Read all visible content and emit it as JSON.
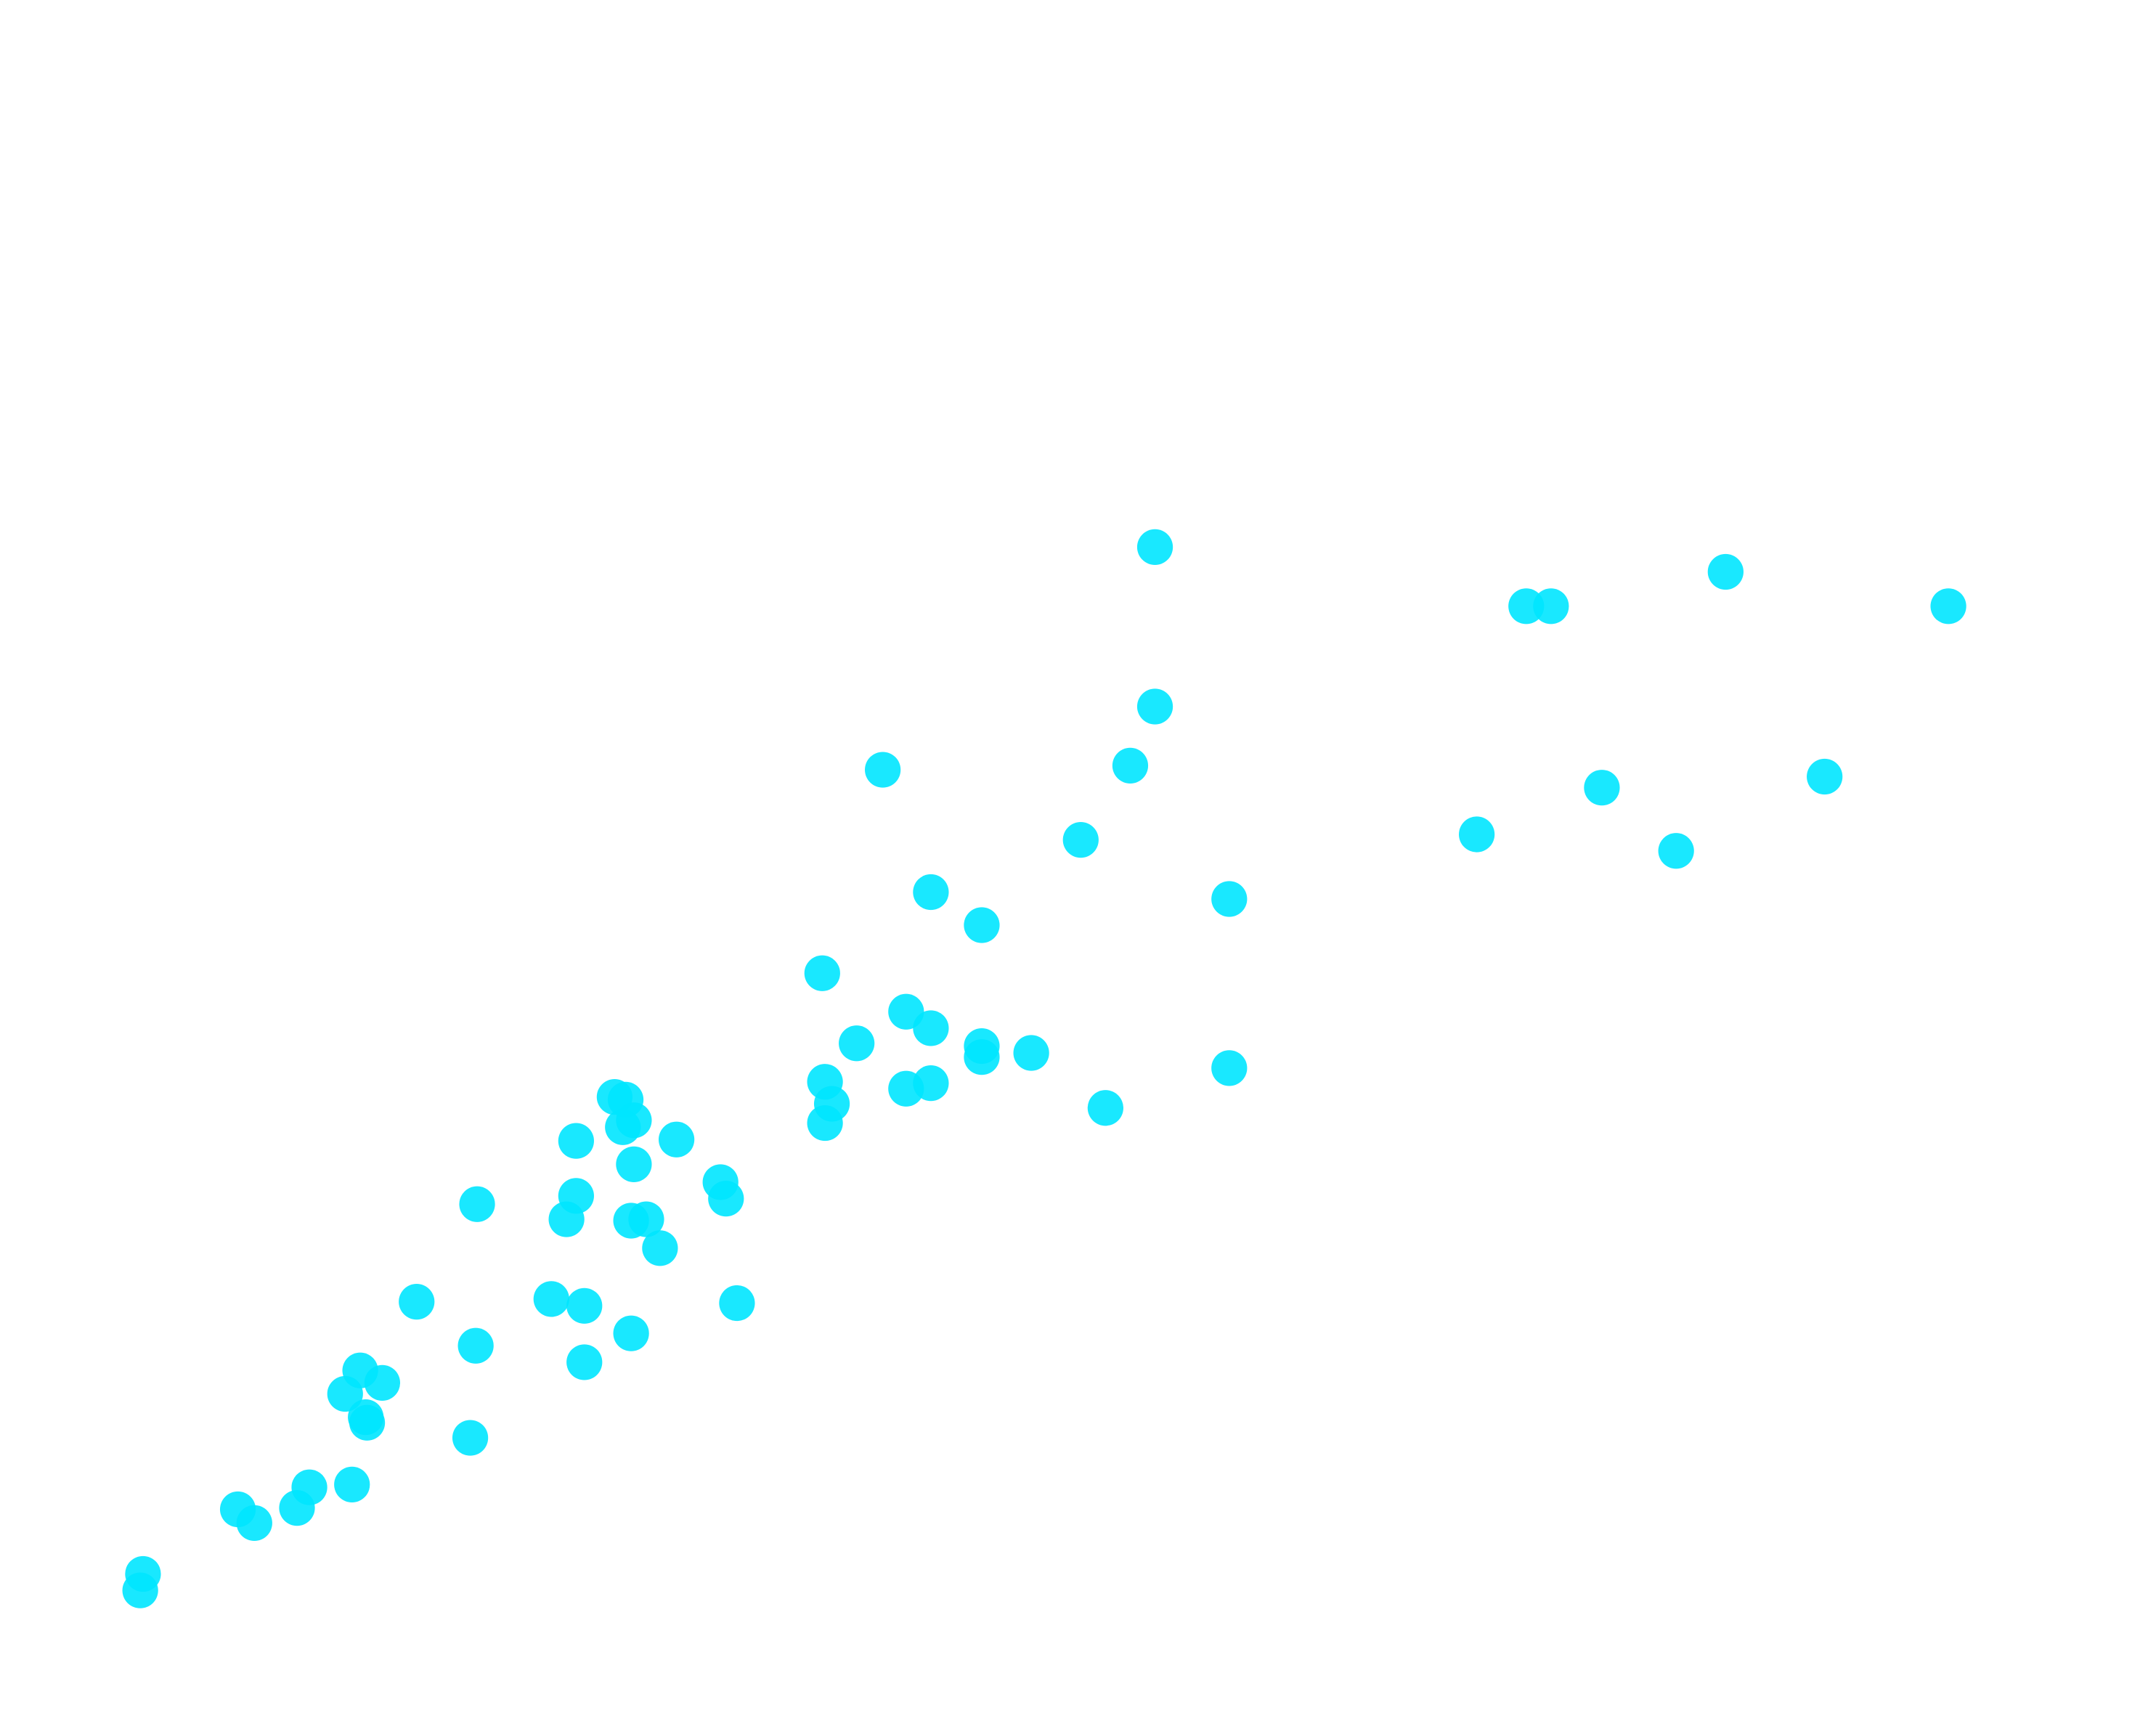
{
  "chart_data": {
    "type": "scatter",
    "title": "",
    "xlabel": "",
    "ylabel": "",
    "xlim": [
      -10,
      146.8
    ],
    "ylim": [
      -5.2,
      120
    ],
    "grid": false,
    "axes_visible": false,
    "legend": "none",
    "marker_color": "#00e5ff",
    "points": [
      [
        74,
        80.2
      ],
      [
        101,
        75.9
      ],
      [
        102.8,
        75.9
      ],
      [
        115.5,
        78.4
      ],
      [
        131.7,
        75.9
      ],
      [
        74,
        68.6
      ],
      [
        54.2,
        64
      ],
      [
        72.2,
        64.3
      ],
      [
        68.6,
        58.9
      ],
      [
        97.4,
        59.3
      ],
      [
        106.5,
        62.7
      ],
      [
        111.9,
        58.1
      ],
      [
        122.7,
        63.5
      ],
      [
        57.7,
        55.1
      ],
      [
        61.4,
        52.7
      ],
      [
        79.4,
        54.6
      ],
      [
        49.8,
        49.2
      ],
      [
        55.9,
        46.4
      ],
      [
        57.7,
        45.2
      ],
      [
        52.3,
        44.1
      ],
      [
        61.4,
        43.9
      ],
      [
        61.4,
        43.1
      ],
      [
        65,
        43.4
      ],
      [
        79.4,
        42.3
      ],
      [
        50,
        41.3
      ],
      [
        55.9,
        40.8
      ],
      [
        57.7,
        41.2
      ],
      [
        70.4,
        39.4
      ],
      [
        50.5,
        39.7
      ],
      [
        50,
        38.3
      ],
      [
        34.7,
        40.2
      ],
      [
        35.5,
        40
      ],
      [
        36.1,
        38.5
      ],
      [
        35.3,
        38
      ],
      [
        31.9,
        37
      ],
      [
        39.2,
        37.1
      ],
      [
        36.1,
        35.3
      ],
      [
        42.4,
        34
      ],
      [
        42.8,
        32.8
      ],
      [
        24.7,
        32.4
      ],
      [
        31.9,
        33
      ],
      [
        31.2,
        31.3
      ],
      [
        35.9,
        31.2
      ],
      [
        37,
        31.3
      ],
      [
        38,
        29.2
      ],
      [
        20.3,
        25.3
      ],
      [
        30.1,
        25.5
      ],
      [
        32.5,
        25
      ],
      [
        43.6,
        25.2
      ],
      [
        24.6,
        22.1
      ],
      [
        35.9,
        23
      ],
      [
        32.5,
        20.9
      ],
      [
        16.2,
        20.3
      ],
      [
        17.8,
        19.4
      ],
      [
        15.1,
        18.6
      ],
      [
        16.6,
        16.9
      ],
      [
        16.7,
        16.5
      ],
      [
        24.2,
        15.4
      ],
      [
        12.5,
        11.8
      ],
      [
        15.6,
        12
      ],
      [
        7.3,
        10.2
      ],
      [
        8.5,
        9.2
      ],
      [
        11.6,
        10.3
      ],
      [
        0.4,
        5.5
      ],
      [
        0.2,
        4.3
      ]
    ]
  }
}
